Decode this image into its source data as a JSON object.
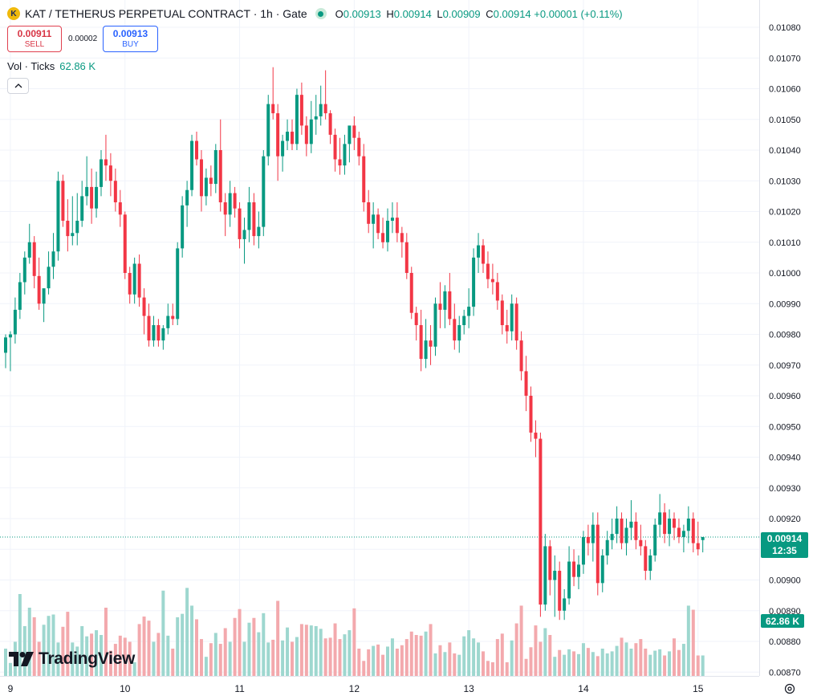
{
  "header": {
    "symbol_icon": "K",
    "symbol": "KAT / TETHERUS PERPETUAL CONTRACT · 1h · Gate",
    "status_icon": "market-open-dot",
    "ohlc": {
      "o_label": "O",
      "o": "0.00913",
      "h_label": "H",
      "h": "0.00914",
      "l_label": "L",
      "l": "0.00909",
      "c_label": "C",
      "c": "0.00914",
      "change": "+0.00001 (+0.11%)"
    }
  },
  "trade": {
    "sell_price": "0.00911",
    "sell_label": "SELL",
    "spread": "0.00002",
    "buy_price": "0.00913",
    "buy_label": "BUY"
  },
  "volume_legend": {
    "label": "Vol · Ticks",
    "value": "62.86 K"
  },
  "collapse_icon": "chevron-up-icon",
  "logo_text": "TradingView",
  "price_tag": {
    "price": "0.00914",
    "countdown": "12:35"
  },
  "volume_tag": "62.86 K",
  "settings_icon": "gear-icon",
  "colors": {
    "up": "#089981",
    "down": "#F23645",
    "vol_up": "#9ed7cf",
    "vol_down": "#f3a9ad",
    "grid": "#f0f3fa"
  },
  "chart_data": {
    "type": "candlestick",
    "interval": "1h",
    "ylim": [
      0.00865,
      0.01085
    ],
    "y_ticks": [
      "0.01080",
      "0.01070",
      "0.01060",
      "0.01050",
      "0.01040",
      "0.01030",
      "0.01020",
      "0.01010",
      "0.01000",
      "0.00990",
      "0.00980",
      "0.00970",
      "0.00960",
      "0.00950",
      "0.00940",
      "0.00930",
      "0.00920",
      "0.00910",
      "0.00900",
      "0.00890",
      "0.00880",
      "0.00870"
    ],
    "x_labels": [
      {
        "label": "9",
        "index": 1
      },
      {
        "label": "10",
        "index": 25
      },
      {
        "label": "11",
        "index": 49
      },
      {
        "label": "12",
        "index": 73
      },
      {
        "label": "13",
        "index": 97
      },
      {
        "label": "14",
        "index": 121
      },
      {
        "label": "15",
        "index": 145
      }
    ],
    "last_price": 0.00914,
    "grid": true,
    "candles": [
      [
        0.00974,
        0.0098,
        0.00969,
        0.00979
      ],
      [
        0.00979,
        0.00981,
        0.00968,
        0.0098
      ],
      [
        0.0098,
        0.00992,
        0.00977,
        0.00988
      ],
      [
        0.00988,
        0.01,
        0.00985,
        0.00997
      ],
      [
        0.00997,
        0.01007,
        0.00993,
        0.01005
      ],
      [
        0.01005,
        0.01016,
        0.01003,
        0.0101
      ],
      [
        0.0101,
        0.01012,
        0.00995,
        0.00999
      ],
      [
        0.00999,
        0.01005,
        0.00988,
        0.0099
      ],
      [
        0.0099,
        0.00993,
        0.00984,
        0.00995
      ],
      [
        0.00995,
        0.01007,
        0.00993,
        0.01002
      ],
      [
        0.01002,
        0.01013,
        0.00998,
        0.01007
      ],
      [
        0.01007,
        0.01033,
        0.01004,
        0.0103
      ],
      [
        0.0103,
        0.01032,
        0.01015,
        0.01017
      ],
      [
        0.01017,
        0.01024,
        0.01007,
        0.01012
      ],
      [
        0.01012,
        0.01025,
        0.01009,
        0.01013
      ],
      [
        0.01013,
        0.01026,
        0.01009,
        0.01017
      ],
      [
        0.01017,
        0.0103,
        0.01015,
        0.01025
      ],
      [
        0.01025,
        0.01038,
        0.01022,
        0.01028
      ],
      [
        0.01028,
        0.01034,
        0.01016,
        0.01021
      ],
      [
        0.01021,
        0.01033,
        0.01018,
        0.01028
      ],
      [
        0.01028,
        0.0104,
        0.01025,
        0.01037
      ],
      [
        0.01037,
        0.01045,
        0.0103,
        0.01035
      ],
      [
        0.01035,
        0.01039,
        0.01025,
        0.0103
      ],
      [
        0.0103,
        0.01034,
        0.0102,
        0.01023
      ],
      [
        0.01023,
        0.01027,
        0.01015,
        0.01019
      ],
      [
        0.01019,
        0.0102,
        0.00998,
        0.01
      ],
      [
        0.01,
        0.01002,
        0.0099,
        0.00993
      ],
      [
        0.00993,
        0.01005,
        0.0099,
        0.01003
      ],
      [
        0.01003,
        0.01006,
        0.00989,
        0.00992
      ],
      [
        0.00992,
        0.00995,
        0.0098,
        0.00986
      ],
      [
        0.00986,
        0.0099,
        0.00976,
        0.00978
      ],
      [
        0.00978,
        0.00986,
        0.00976,
        0.00983
      ],
      [
        0.00983,
        0.00985,
        0.00976,
        0.00978
      ],
      [
        0.00978,
        0.00983,
        0.00975,
        0.00982
      ],
      [
        0.00982,
        0.0099,
        0.0098,
        0.00986
      ],
      [
        0.00986,
        0.0099,
        0.00983,
        0.00985
      ],
      [
        0.00985,
        0.0101,
        0.00983,
        0.01008
      ],
      [
        0.01008,
        0.01025,
        0.01005,
        0.01022
      ],
      [
        0.01022,
        0.0103,
        0.01015,
        0.01027
      ],
      [
        0.01027,
        0.01045,
        0.01025,
        0.01043
      ],
      [
        0.01043,
        0.01046,
        0.01035,
        0.01037
      ],
      [
        0.01037,
        0.0104,
        0.0102,
        0.01025
      ],
      [
        0.01025,
        0.01034,
        0.01022,
        0.01031
      ],
      [
        0.01031,
        0.01035,
        0.01025,
        0.01029
      ],
      [
        0.01029,
        0.01042,
        0.01026,
        0.0104
      ],
      [
        0.0104,
        0.0105,
        0.0102,
        0.01023
      ],
      [
        0.01023,
        0.01026,
        0.01012,
        0.01019
      ],
      [
        0.01019,
        0.0103,
        0.01015,
        0.01026
      ],
      [
        0.01026,
        0.01028,
        0.01018,
        0.01021
      ],
      [
        0.01021,
        0.01023,
        0.01008,
        0.01011
      ],
      [
        0.01011,
        0.01018,
        0.01003,
        0.01014
      ],
      [
        0.01014,
        0.01028,
        0.0101,
        0.01023
      ],
      [
        0.01023,
        0.01026,
        0.01009,
        0.01012
      ],
      [
        0.01012,
        0.0102,
        0.01008,
        0.01015
      ],
      [
        0.01015,
        0.0104,
        0.01012,
        0.01038
      ],
      [
        0.01038,
        0.01058,
        0.01035,
        0.01055
      ],
      [
        0.01055,
        0.01067,
        0.0105,
        0.01052
      ],
      [
        0.01052,
        0.01055,
        0.0103,
        0.01038
      ],
      [
        0.01038,
        0.01045,
        0.01033,
        0.01043
      ],
      [
        0.01043,
        0.0105,
        0.0104,
        0.01046
      ],
      [
        0.01046,
        0.0105,
        0.0104,
        0.01042
      ],
      [
        0.01042,
        0.0106,
        0.0104,
        0.01058
      ],
      [
        0.01058,
        0.01062,
        0.01045,
        0.01048
      ],
      [
        0.01048,
        0.01051,
        0.01038,
        0.01042
      ],
      [
        0.01042,
        0.01056,
        0.01039,
        0.0105
      ],
      [
        0.0105,
        0.01058,
        0.01045,
        0.01051
      ],
      [
        0.01051,
        0.01061,
        0.01048,
        0.01055
      ],
      [
        0.01055,
        0.01066,
        0.0105,
        0.01052
      ],
      [
        0.01052,
        0.01053,
        0.01042,
        0.01045
      ],
      [
        0.01045,
        0.01047,
        0.01033,
        0.01037
      ],
      [
        0.01037,
        0.01044,
        0.01032,
        0.01035
      ],
      [
        0.01035,
        0.01045,
        0.01032,
        0.01042
      ],
      [
        0.01042,
        0.01047,
        0.01036,
        0.01048
      ],
      [
        0.01048,
        0.01051,
        0.0104,
        0.01044
      ],
      [
        0.01044,
        0.01046,
        0.01035,
        0.01038
      ],
      [
        0.01038,
        0.01042,
        0.0102,
        0.01023
      ],
      [
        0.01023,
        0.01027,
        0.01013,
        0.01016
      ],
      [
        0.01016,
        0.01023,
        0.01008,
        0.01019
      ],
      [
        0.01019,
        0.01021,
        0.01011,
        0.01013
      ],
      [
        0.01013,
        0.01018,
        0.01008,
        0.0101
      ],
      [
        0.0101,
        0.01021,
        0.01007,
        0.01017
      ],
      [
        0.01017,
        0.01023,
        0.01013,
        0.01018
      ],
      [
        0.01018,
        0.01023,
        0.0101,
        0.01013
      ],
      [
        0.01013,
        0.01015,
        0.01005,
        0.0101
      ],
      [
        0.0101,
        0.01013,
        0.00998,
        0.01
      ],
      [
        0.01,
        0.01002,
        0.00985,
        0.00987
      ],
      [
        0.00987,
        0.00989,
        0.00978,
        0.00983
      ],
      [
        0.00983,
        0.00988,
        0.00968,
        0.00972
      ],
      [
        0.00972,
        0.00985,
        0.00969,
        0.00978
      ],
      [
        0.00978,
        0.00983,
        0.0097,
        0.00976
      ],
      [
        0.00976,
        0.00992,
        0.00973,
        0.0099
      ],
      [
        0.0099,
        0.00997,
        0.00982,
        0.00988
      ],
      [
        0.00988,
        0.00996,
        0.00982,
        0.00994
      ],
      [
        0.00994,
        0.01,
        0.00983,
        0.00985
      ],
      [
        0.00985,
        0.0099,
        0.00975,
        0.00978
      ],
      [
        0.00978,
        0.00986,
        0.00974,
        0.00983
      ],
      [
        0.00983,
        0.00988,
        0.0098,
        0.00986
      ],
      [
        0.00986,
        0.00995,
        0.00982,
        0.00989
      ],
      [
        0.00989,
        0.01008,
        0.00986,
        0.01005
      ],
      [
        0.01005,
        0.01013,
        0.01,
        0.01009
      ],
      [
        0.01009,
        0.01011,
        0.01,
        0.01003
      ],
      [
        0.01003,
        0.01007,
        0.00995,
        0.00998
      ],
      [
        0.00998,
        0.01003,
        0.00993,
        0.00997
      ],
      [
        0.00997,
        0.01,
        0.00988,
        0.00991
      ],
      [
        0.00991,
        0.00993,
        0.0098,
        0.00983
      ],
      [
        0.00983,
        0.00988,
        0.00977,
        0.00981
      ],
      [
        0.00981,
        0.00993,
        0.00978,
        0.0099
      ],
      [
        0.0099,
        0.00992,
        0.00975,
        0.00978
      ],
      [
        0.00978,
        0.00981,
        0.00965,
        0.00968
      ],
      [
        0.00968,
        0.00973,
        0.00955,
        0.0096
      ],
      [
        0.0096,
        0.00963,
        0.00945,
        0.00948
      ],
      [
        0.00948,
        0.00952,
        0.0094,
        0.00946
      ],
      [
        0.00946,
        0.00948,
        0.00888,
        0.00892
      ],
      [
        0.00892,
        0.00915,
        0.0089,
        0.00911
      ],
      [
        0.00911,
        0.00913,
        0.00895,
        0.009
      ],
      [
        0.009,
        0.00908,
        0.00888,
        0.00903
      ],
      [
        0.00903,
        0.00906,
        0.00887,
        0.0089
      ],
      [
        0.0089,
        0.00897,
        0.00887,
        0.00894
      ],
      [
        0.00894,
        0.00911,
        0.00892,
        0.00906
      ],
      [
        0.00906,
        0.0091,
        0.00898,
        0.00901
      ],
      [
        0.00901,
        0.00908,
        0.00897,
        0.00905
      ],
      [
        0.00905,
        0.00916,
        0.00902,
        0.00914
      ],
      [
        0.00914,
        0.00918,
        0.00908,
        0.00912
      ],
      [
        0.00912,
        0.00922,
        0.00906,
        0.00918
      ],
      [
        0.00918,
        0.00922,
        0.00895,
        0.00899
      ],
      [
        0.00899,
        0.0091,
        0.00896,
        0.00908
      ],
      [
        0.00908,
        0.00916,
        0.00905,
        0.00913
      ],
      [
        0.00913,
        0.0092,
        0.0091,
        0.00915
      ],
      [
        0.00915,
        0.00924,
        0.00912,
        0.0092
      ],
      [
        0.0092,
        0.00922,
        0.0091,
        0.00912
      ],
      [
        0.00912,
        0.0092,
        0.00908,
        0.00917
      ],
      [
        0.00917,
        0.00926,
        0.00913,
        0.00919
      ],
      [
        0.00919,
        0.00922,
        0.0091,
        0.00913
      ],
      [
        0.00913,
        0.00918,
        0.00908,
        0.00911
      ],
      [
        0.00911,
        0.00913,
        0.009,
        0.00903
      ],
      [
        0.00903,
        0.0091,
        0.009,
        0.00908
      ],
      [
        0.00908,
        0.0092,
        0.00906,
        0.00918
      ],
      [
        0.00918,
        0.00928,
        0.00914,
        0.00922
      ],
      [
        0.00922,
        0.00925,
        0.00912,
        0.00915
      ],
      [
        0.00915,
        0.00923,
        0.00911,
        0.0092
      ],
      [
        0.0092,
        0.00922,
        0.00913,
        0.00917
      ],
      [
        0.00917,
        0.0092,
        0.00912,
        0.00914
      ],
      [
        0.00914,
        0.00918,
        0.00909,
        0.00916
      ],
      [
        0.00916,
        0.00924,
        0.00912,
        0.0092
      ],
      [
        0.0092,
        0.00922,
        0.00909,
        0.00912
      ],
      [
        0.00912,
        0.00919,
        0.00908,
        0.0091
      ],
      [
        0.00913,
        0.00914,
        0.00909,
        0.00914
      ]
    ],
    "volume_relative": [
      0.4,
      0.19,
      0.5,
      1.2,
      0.73,
      1.0,
      0.86,
      0.5,
      0.75,
      0.88,
      0.9,
      0.49,
      0.72,
      0.94,
      0.49,
      0.43,
      0.73,
      0.58,
      0.62,
      0.67,
      0.6,
      1.0,
      0.37,
      0.47,
      0.59,
      0.56,
      0.5,
      0.2,
      0.76,
      0.87,
      0.81,
      0.5,
      0.63,
      1.25,
      0.59,
      0.4,
      0.86,
      0.91,
      1.29,
      1.03,
      0.83,
      0.54,
      0.28,
      0.48,
      0.63,
      0.47,
      0.7,
      0.5,
      0.85,
      0.98,
      0.5,
      0.78,
      0.85,
      0.64,
      0.92,
      0.49,
      0.53,
      1.1,
      0.52,
      0.71,
      0.5,
      0.57,
      0.76,
      0.75,
      0.74,
      0.73,
      0.69,
      0.55,
      0.56,
      0.77,
      0.54,
      0.61,
      0.67,
      0.99,
      0.4,
      0.22,
      0.39,
      0.44,
      0.46,
      0.31,
      0.43,
      0.55,
      0.4,
      0.45,
      0.54,
      0.65,
      0.6,
      0.59,
      0.65,
      0.76,
      0.33,
      0.45,
      0.35,
      0.49,
      0.33,
      0.31,
      0.58,
      0.67,
      0.55,
      0.49,
      0.36,
      0.22,
      0.2,
      0.54,
      0.62,
      0.2,
      0.52,
      0.77,
      1.03,
      0.25,
      0.42,
      0.74,
      0.5,
      0.7,
      0.6,
      0.28,
      0.38,
      0.31,
      0.39,
      0.36,
      0.32,
      0.48,
      0.41,
      0.35,
      0.29,
      0.4,
      0.33,
      0.36,
      0.44,
      0.56,
      0.49,
      0.4,
      0.48,
      0.54,
      0.4,
      0.31,
      0.37,
      0.39,
      0.3,
      0.36,
      0.55,
      0.38,
      0.47,
      1.03,
      0.97
    ]
  }
}
